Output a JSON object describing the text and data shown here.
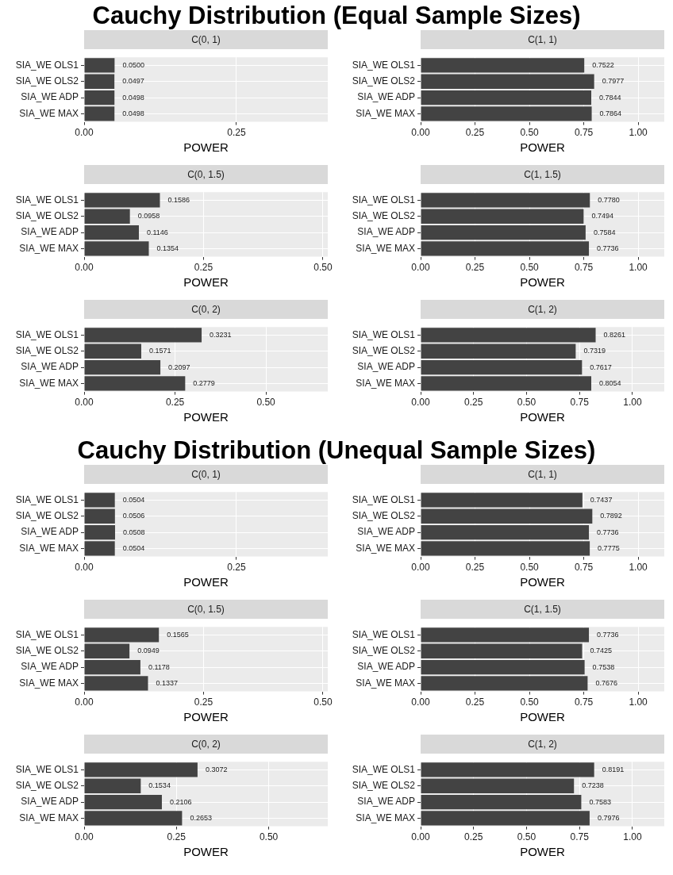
{
  "chart_data": [
    {
      "type": "other",
      "title": "Cauchy Distribution (Equal Sample Sizes)"
    },
    {
      "type": "bar",
      "orientation": "horizontal",
      "title": "C(0, 1)",
      "xlabel": "POWER",
      "categories": [
        "SIA_WE OLS1",
        "SIA_WE OLS2",
        "SIA_WE ADP",
        "SIA_WE MAX"
      ],
      "values": [
        0.05,
        0.0497,
        0.0498,
        0.0498
      ],
      "value_labels": [
        "0.0500",
        "0.0497",
        "0.0498",
        "0.0498"
      ],
      "color": "#434343",
      "xlim": [
        0,
        0.4
      ],
      "xticks": [
        {
          "value": 0,
          "label": "0.00"
        },
        {
          "value": 0.25,
          "label": "0.25"
        }
      ],
      "grid": true
    },
    {
      "type": "bar",
      "orientation": "horizontal",
      "title": "C(1, 1)",
      "xlabel": "POWER",
      "categories": [
        "SIA_WE OLS1",
        "SIA_WE OLS2",
        "SIA_WE ADP",
        "SIA_WE MAX"
      ],
      "values": [
        0.7522,
        0.7977,
        0.7844,
        0.7864
      ],
      "value_labels": [
        "0.7522",
        "0.7977",
        "0.7844",
        "0.7864"
      ],
      "color": "#434343",
      "xlim": [
        0,
        1.12
      ],
      "xticks": [
        {
          "value": 0,
          "label": "0.00"
        },
        {
          "value": 0.25,
          "label": "0.25"
        },
        {
          "value": 0.5,
          "label": "0.50"
        },
        {
          "value": 0.75,
          "label": "0.75"
        },
        {
          "value": 1,
          "label": "1.00"
        }
      ],
      "grid": true
    },
    {
      "type": "bar",
      "orientation": "horizontal",
      "title": "C(0, 1.5)",
      "xlabel": "POWER",
      "categories": [
        "SIA_WE OLS1",
        "SIA_WE OLS2",
        "SIA_WE ADP",
        "SIA_WE MAX"
      ],
      "values": [
        0.1586,
        0.0958,
        0.1146,
        0.1354
      ],
      "value_labels": [
        "0.1586",
        "0.0958",
        "0.1146",
        "0.1354"
      ],
      "color": "#434343",
      "xlim": [
        0,
        0.51
      ],
      "xticks": [
        {
          "value": 0,
          "label": "0.00"
        },
        {
          "value": 0.25,
          "label": "0.25"
        },
        {
          "value": 0.5,
          "label": "0.50"
        }
      ],
      "grid": true
    },
    {
      "type": "bar",
      "orientation": "horizontal",
      "title": "C(1, 1.5)",
      "xlabel": "POWER",
      "categories": [
        "SIA_WE OLS1",
        "SIA_WE OLS2",
        "SIA_WE ADP",
        "SIA_WE MAX"
      ],
      "values": [
        0.778,
        0.7494,
        0.7584,
        0.7736
      ],
      "value_labels": [
        "0.7780",
        "0.7494",
        "0.7584",
        "0.7736"
      ],
      "color": "#434343",
      "xlim": [
        0,
        1.12
      ],
      "xticks": [
        {
          "value": 0,
          "label": "0.00"
        },
        {
          "value": 0.25,
          "label": "0.25"
        },
        {
          "value": 0.5,
          "label": "0.50"
        },
        {
          "value": 0.75,
          "label": "0.75"
        },
        {
          "value": 1,
          "label": "1.00"
        }
      ],
      "grid": true
    },
    {
      "type": "bar",
      "orientation": "horizontal",
      "title": "C(0, 2)",
      "xlabel": "POWER",
      "categories": [
        "SIA_WE OLS1",
        "SIA_WE OLS2",
        "SIA_WE ADP",
        "SIA_WE MAX"
      ],
      "values": [
        0.3231,
        0.1571,
        0.2097,
        0.2779
      ],
      "value_labels": [
        "0.3231",
        "0.1571",
        "0.2097",
        "0.2779"
      ],
      "color": "#434343",
      "xlim": [
        0,
        0.67
      ],
      "xticks": [
        {
          "value": 0,
          "label": "0.00"
        },
        {
          "value": 0.25,
          "label": "0.25"
        },
        {
          "value": 0.5,
          "label": "0.50"
        }
      ],
      "grid": true
    },
    {
      "type": "bar",
      "orientation": "horizontal",
      "title": "C(1, 2)",
      "xlabel": "POWER",
      "categories": [
        "SIA_WE OLS1",
        "SIA_WE OLS2",
        "SIA_WE ADP",
        "SIA_WE MAX"
      ],
      "values": [
        0.8261,
        0.7319,
        0.7617,
        0.8054
      ],
      "value_labels": [
        "0.8261",
        "0.7319",
        "0.7617",
        "0.8054"
      ],
      "color": "#434343",
      "xlim": [
        0,
        1.15
      ],
      "xticks": [
        {
          "value": 0,
          "label": "0.00"
        },
        {
          "value": 0.25,
          "label": "0.25"
        },
        {
          "value": 0.5,
          "label": "0.50"
        },
        {
          "value": 0.75,
          "label": "0.75"
        },
        {
          "value": 1,
          "label": "1.00"
        }
      ],
      "grid": true
    },
    {
      "type": "other",
      "title": "Cauchy Distribution (Unequal Sample Sizes)"
    },
    {
      "type": "bar",
      "orientation": "horizontal",
      "title": "C(0, 1)",
      "xlabel": "POWER",
      "categories": [
        "SIA_WE OLS1",
        "SIA_WE OLS2",
        "SIA_WE ADP",
        "SIA_WE MAX"
      ],
      "values": [
        0.0504,
        0.0506,
        0.0508,
        0.0504
      ],
      "value_labels": [
        "0.0504",
        "0.0506",
        "0.0508",
        "0.0504"
      ],
      "color": "#434343",
      "xlim": [
        0,
        0.4
      ],
      "xticks": [
        {
          "value": 0,
          "label": "0.00"
        },
        {
          "value": 0.25,
          "label": "0.25"
        }
      ],
      "grid": true
    },
    {
      "type": "bar",
      "orientation": "horizontal",
      "title": "C(1, 1)",
      "xlabel": "POWER",
      "categories": [
        "SIA_WE OLS1",
        "SIA_WE OLS2",
        "SIA_WE ADP",
        "SIA_WE MAX"
      ],
      "values": [
        0.7437,
        0.7892,
        0.7736,
        0.7775
      ],
      "value_labels": [
        "0.7437",
        "0.7892",
        "0.7736",
        "0.7775"
      ],
      "color": "#434343",
      "xlim": [
        0,
        1.12
      ],
      "xticks": [
        {
          "value": 0,
          "label": "0.00"
        },
        {
          "value": 0.25,
          "label": "0.25"
        },
        {
          "value": 0.5,
          "label": "0.50"
        },
        {
          "value": 0.75,
          "label": "0.75"
        },
        {
          "value": 1,
          "label": "1.00"
        }
      ],
      "grid": true
    },
    {
      "type": "bar",
      "orientation": "horizontal",
      "title": "C(0, 1.5)",
      "xlabel": "POWER",
      "categories": [
        "SIA_WE OLS1",
        "SIA_WE OLS2",
        "SIA_WE ADP",
        "SIA_WE MAX"
      ],
      "values": [
        0.1565,
        0.0949,
        0.1178,
        0.1337
      ],
      "value_labels": [
        "0.1565",
        "0.0949",
        "0.1178",
        "0.1337"
      ],
      "color": "#434343",
      "xlim": [
        0,
        0.51
      ],
      "xticks": [
        {
          "value": 0,
          "label": "0.00"
        },
        {
          "value": 0.25,
          "label": "0.25"
        },
        {
          "value": 0.5,
          "label": "0.50"
        }
      ],
      "grid": true
    },
    {
      "type": "bar",
      "orientation": "horizontal",
      "title": "C(1, 1.5)",
      "xlabel": "POWER",
      "categories": [
        "SIA_WE OLS1",
        "SIA_WE OLS2",
        "SIA_WE ADP",
        "SIA_WE MAX"
      ],
      "values": [
        0.7736,
        0.7425,
        0.7538,
        0.7676
      ],
      "value_labels": [
        "0.7736",
        "0.7425",
        "0.7538",
        "0.7676"
      ],
      "color": "#434343",
      "xlim": [
        0,
        1.12
      ],
      "xticks": [
        {
          "value": 0,
          "label": "0.00"
        },
        {
          "value": 0.25,
          "label": "0.25"
        },
        {
          "value": 0.5,
          "label": "0.50"
        },
        {
          "value": 0.75,
          "label": "0.75"
        },
        {
          "value": 1,
          "label": "1.00"
        }
      ],
      "grid": true
    },
    {
      "type": "bar",
      "orientation": "horizontal",
      "title": "C(0, 2)",
      "xlabel": "POWER",
      "categories": [
        "SIA_WE OLS1",
        "SIA_WE OLS2",
        "SIA_WE ADP",
        "SIA_WE MAX"
      ],
      "values": [
        0.3072,
        0.1534,
        0.2106,
        0.2653
      ],
      "value_labels": [
        "0.3072",
        "0.1534",
        "0.2106",
        "0.2653"
      ],
      "color": "#434343",
      "xlim": [
        0,
        0.66
      ],
      "xticks": [
        {
          "value": 0,
          "label": "0.00"
        },
        {
          "value": 0.25,
          "label": "0.25"
        },
        {
          "value": 0.5,
          "label": "0.50"
        }
      ],
      "grid": true
    },
    {
      "type": "bar",
      "orientation": "horizontal",
      "title": "C(1, 2)",
      "xlabel": "POWER",
      "categories": [
        "SIA_WE OLS1",
        "SIA_WE OLS2",
        "SIA_WE ADP",
        "SIA_WE MAX"
      ],
      "values": [
        0.8191,
        0.7238,
        0.7583,
        0.7976
      ],
      "value_labels": [
        "0.8191",
        "0.7238",
        "0.7583",
        "0.7976"
      ],
      "color": "#434343",
      "xlim": [
        0,
        1.15
      ],
      "xticks": [
        {
          "value": 0,
          "label": "0.00"
        },
        {
          "value": 0.25,
          "label": "0.25"
        },
        {
          "value": 0.5,
          "label": "0.50"
        },
        {
          "value": 0.75,
          "label": "0.75"
        },
        {
          "value": 1,
          "label": "1.00"
        }
      ],
      "grid": true
    }
  ]
}
